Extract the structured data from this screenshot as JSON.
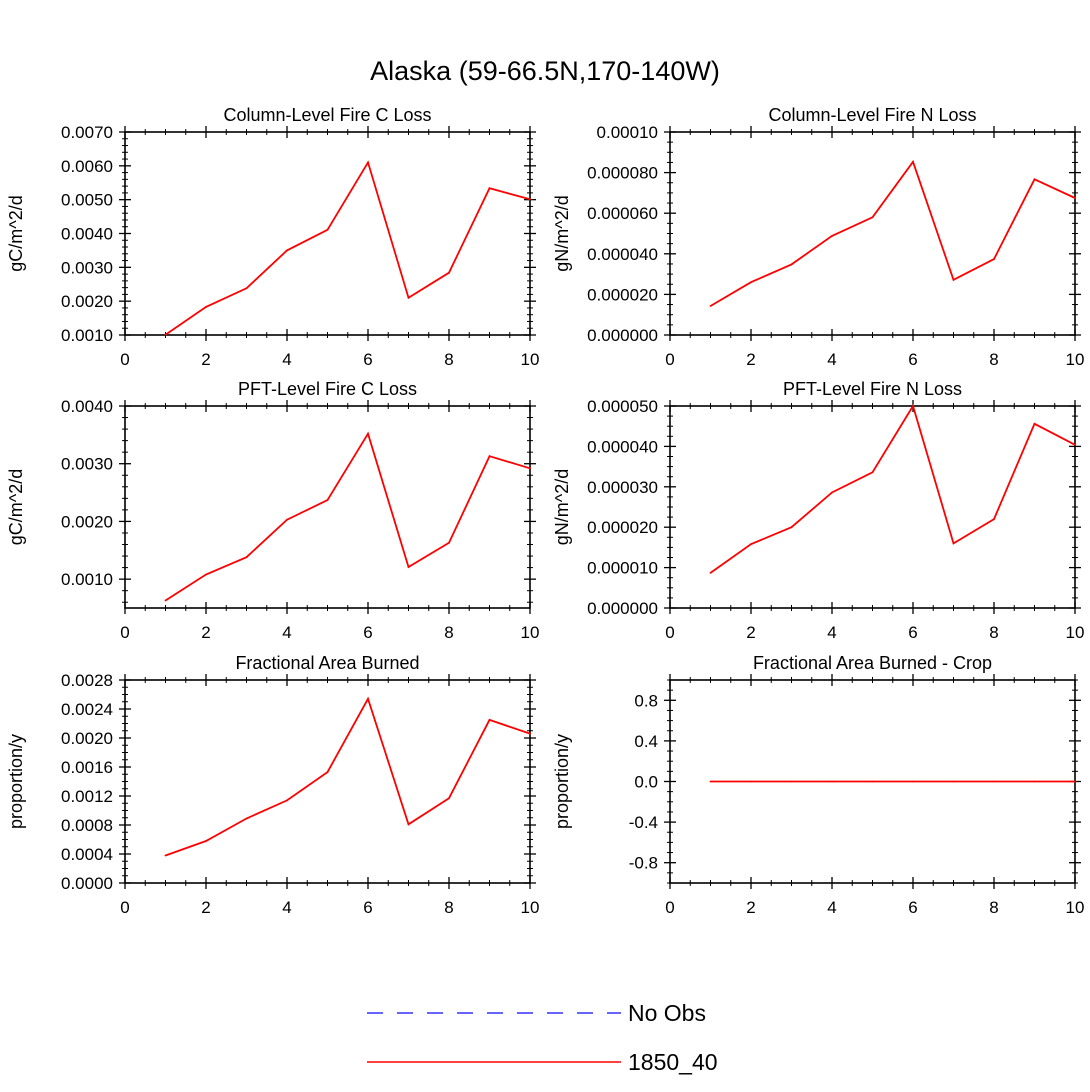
{
  "figure_title": "Alaska (59-66.5N,170-140W)",
  "colors": {
    "series": "#ff0000",
    "obs": "#3333ff",
    "axis": "#000000"
  },
  "legend": [
    {
      "label": "No Obs",
      "style": "dashed",
      "color": "#3333ff"
    },
    {
      "label": "1850_40",
      "style": "solid",
      "color": "#ff0000"
    }
  ],
  "chart_data": [
    {
      "type": "line",
      "title": "Column-Level Fire C Loss",
      "ylabel": "gC/m^2/d",
      "xlabel": "",
      "xlim": [
        0,
        10
      ],
      "ylim": [
        0.001,
        0.007
      ],
      "xticks": [
        0,
        2,
        4,
        6,
        8,
        10
      ],
      "xtick_labels": [
        "0",
        "2",
        "4",
        "6",
        "8",
        "10"
      ],
      "yticks": [
        0.001,
        0.002,
        0.003,
        0.004,
        0.005,
        0.006,
        0.007
      ],
      "ytick_labels": [
        "0.0010",
        "0.0020",
        "0.0030",
        "0.0040",
        "0.0050",
        "0.0060",
        "0.0070"
      ],
      "yminor": 5,
      "series": [
        {
          "name": "1850_40",
          "x": [
            1,
            2,
            3,
            4,
            5,
            6,
            7,
            8,
            9,
            10
          ],
          "values": [
            0.00101,
            0.00183,
            0.00238,
            0.0035,
            0.00411,
            0.0061,
            0.0021,
            0.00284,
            0.00534,
            0.00501
          ]
        }
      ]
    },
    {
      "type": "line",
      "title": "Column-Level Fire N Loss",
      "ylabel": "gN/m^2/d",
      "xlabel": "",
      "xlim": [
        0,
        10
      ],
      "ylim": [
        0,
        0.0001
      ],
      "xticks": [
        0,
        2,
        4,
        6,
        8,
        10
      ],
      "xtick_labels": [
        "0",
        "2",
        "4",
        "6",
        "8",
        "10"
      ],
      "yticks": [
        0,
        2e-05,
        4e-05,
        6e-05,
        8e-05,
        0.0001
      ],
      "ytick_labels": [
        "0.000000",
        "0.000020",
        "0.000040",
        "0.000060",
        "0.000080",
        "0.00010"
      ],
      "yminor": 4,
      "series": [
        {
          "name": "1850_40",
          "x": [
            1,
            2,
            3,
            4,
            5,
            6,
            7,
            8,
            9,
            10
          ],
          "values": [
            1.43e-05,
            2.6e-05,
            3.48e-05,
            4.88e-05,
            5.8e-05,
            8.53e-05,
            2.72e-05,
            3.74e-05,
            7.67e-05,
            6.75e-05
          ]
        }
      ]
    },
    {
      "type": "line",
      "title": "PFT-Level Fire C Loss",
      "ylabel": "gC/m^2/d",
      "xlabel": "",
      "xlim": [
        0,
        10
      ],
      "ylim": [
        0.0005,
        0.004
      ],
      "xticks": [
        0,
        2,
        4,
        6,
        8,
        10
      ],
      "xtick_labels": [
        "0",
        "2",
        "4",
        "6",
        "8",
        "10"
      ],
      "yticks": [
        0.001,
        0.002,
        0.003,
        0.004
      ],
      "ytick_labels": [
        "0.0010",
        "0.0020",
        "0.0030",
        "0.0040"
      ],
      "yminor": 5,
      "series": [
        {
          "name": "1850_40",
          "x": [
            1,
            2,
            3,
            4,
            5,
            6,
            7,
            8,
            9,
            10
          ],
          "values": [
            0.00063,
            0.00108,
            0.00138,
            0.00203,
            0.00237,
            0.00352,
            0.00121,
            0.00163,
            0.00313,
            0.00292
          ]
        }
      ]
    },
    {
      "type": "line",
      "title": "PFT-Level Fire N Loss",
      "ylabel": "gN/m^2/d",
      "xlabel": "",
      "xlim": [
        0,
        10
      ],
      "ylim": [
        0,
        5e-05
      ],
      "xticks": [
        0,
        2,
        4,
        6,
        8,
        10
      ],
      "xtick_labels": [
        "0",
        "2",
        "4",
        "6",
        "8",
        "10"
      ],
      "yticks": [
        0,
        1e-05,
        2e-05,
        3e-05,
        4e-05,
        5e-05
      ],
      "ytick_labels": [
        "0.000000",
        "0.000010",
        "0.000020",
        "0.000030",
        "0.000040",
        "0.000050"
      ],
      "yminor": 4,
      "series": [
        {
          "name": "1850_40",
          "x": [
            1,
            2,
            3,
            4,
            5,
            6,
            7,
            8,
            9,
            10
          ],
          "values": [
            8.7e-06,
            1.58e-05,
            2e-05,
            2.86e-05,
            3.36e-05,
            5e-05,
            1.6e-05,
            2.2e-05,
            4.56e-05,
            4.04e-05
          ]
        }
      ]
    },
    {
      "type": "line",
      "title": "Fractional Area Burned",
      "ylabel": "proportion/y",
      "xlabel": "",
      "xlim": [
        0,
        10
      ],
      "ylim": [
        0,
        0.0028
      ],
      "xticks": [
        0,
        2,
        4,
        6,
        8,
        10
      ],
      "xtick_labels": [
        "0",
        "2",
        "4",
        "6",
        "8",
        "10"
      ],
      "yticks": [
        0,
        0.0004,
        0.0008,
        0.0012,
        0.0016,
        0.002,
        0.0024,
        0.0028
      ],
      "ytick_labels": [
        "0.0000",
        "0.0004",
        "0.0008",
        "0.0012",
        "0.0016",
        "0.0020",
        "0.0024",
        "0.0028"
      ],
      "yminor": 4,
      "series": [
        {
          "name": "1850_40",
          "x": [
            1,
            2,
            3,
            4,
            5,
            6,
            7,
            8,
            9,
            10
          ],
          "values": [
            0.00038,
            0.00058,
            0.00089,
            0.00114,
            0.00153,
            0.00254,
            0.00081,
            0.00117,
            0.00225,
            0.00206
          ]
        }
      ]
    },
    {
      "type": "line",
      "title": "Fractional Area Burned - Crop",
      "ylabel": "proportion/y",
      "xlabel": "",
      "xlim": [
        0,
        10
      ],
      "ylim": [
        -1,
        1
      ],
      "xticks": [
        0,
        2,
        4,
        6,
        8,
        10
      ],
      "xtick_labels": [
        "0",
        "2",
        "4",
        "6",
        "8",
        "10"
      ],
      "yticks": [
        -0.8,
        -0.4,
        0,
        0.4,
        0.8
      ],
      "ytick_labels": [
        "-0.8",
        "-0.4",
        "0.0",
        "0.4",
        "0.8"
      ],
      "yminor": 4,
      "series": [
        {
          "name": "1850_40",
          "x": [
            1,
            2,
            3,
            4,
            5,
            6,
            7,
            8,
            9,
            10
          ],
          "values": [
            0,
            0,
            0,
            0,
            0,
            0,
            0,
            0,
            0,
            0
          ]
        }
      ]
    }
  ]
}
